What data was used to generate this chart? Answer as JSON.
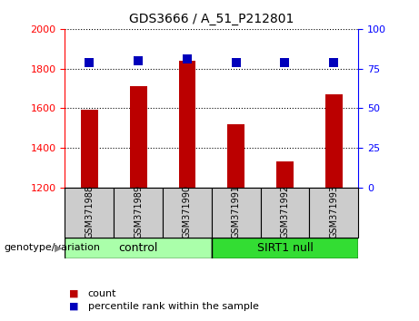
{
  "title": "GDS3666 / A_51_P212801",
  "samples": [
    "GSM371988",
    "GSM371989",
    "GSM371990",
    "GSM371991",
    "GSM371992",
    "GSM371993"
  ],
  "counts": [
    1595,
    1710,
    1840,
    1520,
    1335,
    1670
  ],
  "percentile_ranks": [
    79,
    80,
    81,
    79,
    79,
    79
  ],
  "ylim_left": [
    1200,
    2000
  ],
  "ylim_right": [
    0,
    100
  ],
  "yticks_left": [
    1200,
    1400,
    1600,
    1800,
    2000
  ],
  "yticks_right": [
    0,
    25,
    50,
    75,
    100
  ],
  "bar_color": "#bb0000",
  "dot_color": "#0000bb",
  "grid_color": "#000000",
  "control_label": "control",
  "sirt1_label": "SIRT1 null",
  "genotype_label": "genotype/variation",
  "legend_count_label": "count",
  "legend_percentile_label": "percentile rank within the sample",
  "control_color": "#aaffaa",
  "sirt1_color": "#33dd33",
  "xlabel_area_color": "#cccccc",
  "bar_width": 0.35,
  "dot_size": 55,
  "title_fontsize": 10,
  "tick_fontsize": 8,
  "sample_fontsize": 7,
  "legend_fontsize": 8,
  "genotype_fontsize": 8
}
